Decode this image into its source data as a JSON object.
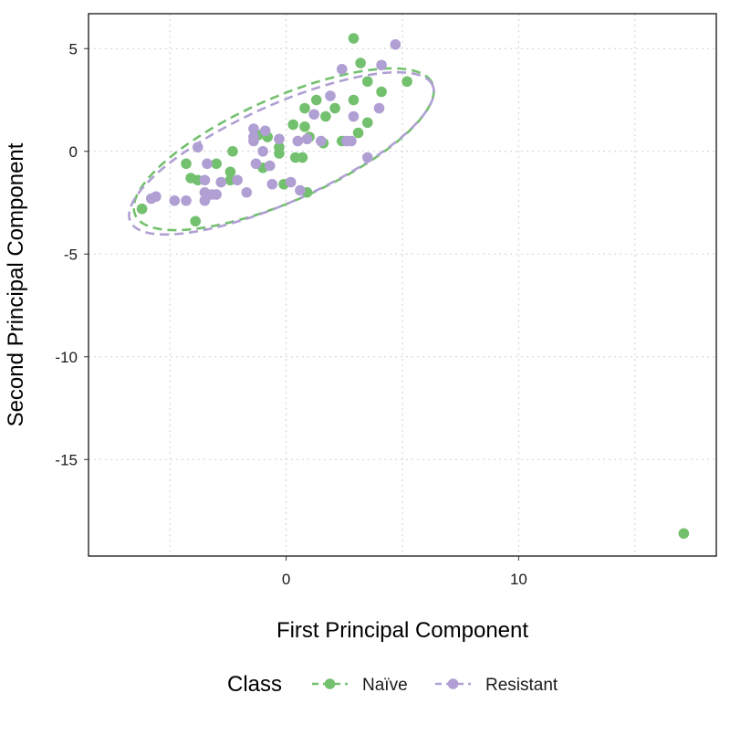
{
  "chart_data": {
    "type": "scatter",
    "xlabel": "First Principal Component",
    "ylabel": "Second Principal Component",
    "xlim": [
      -8.5,
      18.5
    ],
    "ylim": [
      -19.7,
      6.7
    ],
    "xticks": [
      0,
      10
    ],
    "yticks": [
      5,
      0,
      -5,
      -10,
      -15
    ],
    "grid": true,
    "legend": {
      "title": "Class",
      "position": "bottom"
    },
    "series": [
      {
        "name": "Naïve",
        "color": "#73c06e",
        "points": [
          [
            2.9,
            5.5
          ],
          [
            3.2,
            4.3
          ],
          [
            2.9,
            2.5
          ],
          [
            4.1,
            2.9
          ],
          [
            5.2,
            3.4
          ],
          [
            3.5,
            3.4
          ],
          [
            1.3,
            2.5
          ],
          [
            2.1,
            2.1
          ],
          [
            0.8,
            2.1
          ],
          [
            1.7,
            1.7
          ],
          [
            3.5,
            1.4
          ],
          [
            0.3,
            1.3
          ],
          [
            0.8,
            1.2
          ],
          [
            3.1,
            0.9
          ],
          [
            -1.2,
            0.8
          ],
          [
            -0.8,
            0.7
          ],
          [
            1.0,
            0.7
          ],
          [
            1.6,
            0.4
          ],
          [
            2.4,
            0.5
          ],
          [
            -0.3,
            0.2
          ],
          [
            -2.3,
            0.0
          ],
          [
            -0.3,
            -0.1
          ],
          [
            0.4,
            -0.3
          ],
          [
            0.7,
            -0.3
          ],
          [
            -4.3,
            -0.6
          ],
          [
            -3.0,
            -0.6
          ],
          [
            -1.0,
            -0.8
          ],
          [
            -2.4,
            -1.0
          ],
          [
            -4.1,
            -1.3
          ],
          [
            -3.8,
            -1.4
          ],
          [
            -2.4,
            -1.4
          ],
          [
            -0.1,
            -1.6
          ],
          [
            0.9,
            -2.0
          ],
          [
            -6.2,
            -2.8
          ],
          [
            -3.9,
            -3.4
          ],
          [
            17.1,
            -18.6
          ]
        ]
      },
      {
        "name": "Resistant",
        "color": "#b09fd3",
        "points": [
          [
            4.7,
            5.2
          ],
          [
            2.4,
            4.0
          ],
          [
            4.1,
            4.2
          ],
          [
            1.9,
            2.7
          ],
          [
            4.0,
            2.1
          ],
          [
            1.2,
            1.8
          ],
          [
            2.9,
            1.7
          ],
          [
            -1.4,
            1.1
          ],
          [
            -0.9,
            1.0
          ],
          [
            -1.4,
            0.7
          ],
          [
            -0.3,
            0.6
          ],
          [
            0.9,
            0.6
          ],
          [
            1.5,
            0.5
          ],
          [
            -1.4,
            0.5
          ],
          [
            0.5,
            0.5
          ],
          [
            -3.8,
            0.2
          ],
          [
            -1.0,
            0.0
          ],
          [
            2.8,
            0.5
          ],
          [
            2.6,
            0.5
          ],
          [
            -1.3,
            -0.6
          ],
          [
            -3.4,
            -0.6
          ],
          [
            -0.7,
            -0.7
          ],
          [
            3.5,
            -0.3
          ],
          [
            -3.5,
            -1.4
          ],
          [
            -2.1,
            -1.4
          ],
          [
            -2.8,
            -1.5
          ],
          [
            -0.6,
            -1.6
          ],
          [
            0.2,
            -1.5
          ],
          [
            0.6,
            -1.9
          ],
          [
            -1.7,
            -2.0
          ],
          [
            -3.5,
            -2.0
          ],
          [
            -3.2,
            -2.1
          ],
          [
            -3.0,
            -2.1
          ],
          [
            -5.6,
            -2.2
          ],
          [
            -5.8,
            -2.3
          ],
          [
            -4.8,
            -2.4
          ],
          [
            -4.3,
            -2.4
          ],
          [
            -3.5,
            -2.4
          ]
        ]
      }
    ],
    "ellipses": [
      {
        "series": "Naïve",
        "center": [
          -0.1,
          0.1
        ],
        "semi_major": 7.15,
        "semi_minor": 2.45,
        "angle_deg": 27.3
      },
      {
        "series": "Resistant",
        "center": [
          -0.2,
          -0.1
        ],
        "semi_major": 7.3,
        "semi_minor": 2.3,
        "angle_deg": 27.6
      }
    ]
  }
}
